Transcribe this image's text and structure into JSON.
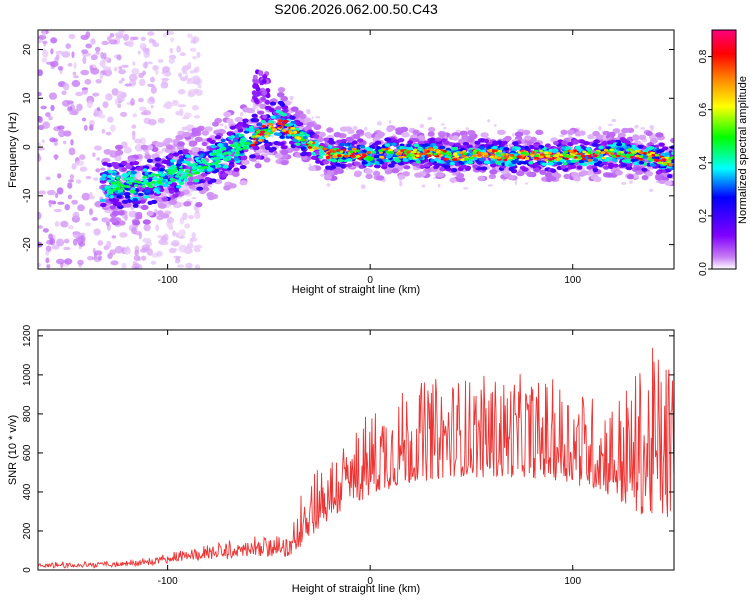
{
  "page_title": "S206.2026.062.00.50.C43",
  "chart_data": [
    {
      "type": "heatmap",
      "name": "spectrogram",
      "xlabel": "Height of straight line (km)",
      "ylabel": "Frequency (Hz)",
      "xlim": [
        -164,
        150
      ],
      "ylim": [
        -25,
        24
      ],
      "x_ticks": [
        -100,
        0,
        100
      ],
      "x_tick_labels": [
        "-100",
        "0",
        "100"
      ],
      "y_ticks": [
        -20,
        -10,
        0,
        10,
        20
      ],
      "y_tick_labels": [
        "-20",
        "-10",
        "0",
        "10",
        "20"
      ],
      "ridge": {
        "x": [
          -160,
          -140,
          -125,
          -115,
          -100,
          -85,
          -70,
          -60,
          -50,
          -45,
          -40,
          -35,
          -30,
          -20,
          -10,
          0,
          10,
          20,
          30,
          40,
          50,
          60,
          70,
          80,
          90,
          100,
          110,
          120,
          130,
          140,
          148
        ],
        "y": [
          -10,
          -9,
          -7.5,
          -8,
          -6,
          -4,
          -1,
          1,
          3.5,
          5,
          4,
          2,
          0.5,
          -1.5,
          -1,
          -2,
          -1,
          -1.5,
          -1,
          -2,
          -1.5,
          -1.5,
          -2,
          -1.5,
          -2,
          -1.5,
          -2,
          -1,
          -1.5,
          -2,
          -3
        ]
      },
      "colorbar": {
        "label": "Normalized spectral amplitude",
        "range": [
          0,
          0.9
        ],
        "ticks": [
          0.0,
          0.2,
          0.4,
          0.6,
          0.8
        ],
        "tick_labels": [
          "0.0",
          "0.2",
          "0.4",
          "0.6",
          "0.8"
        ],
        "colors": [
          "#ffffff",
          "#c87cf4",
          "#8000ff",
          "#0000ff",
          "#00ffff",
          "#00ff00",
          "#ffff00",
          "#ff8000",
          "#ff0000",
          "#ff0080"
        ]
      }
    },
    {
      "type": "line",
      "name": "snr",
      "xlabel": "Height of straight line (km)",
      "ylabel": "SNR (10 * v/v)",
      "xlim": [
        -164,
        150
      ],
      "ylim": [
        0,
        1230
      ],
      "x_ticks": [
        -100,
        0,
        100
      ],
      "x_tick_labels": [
        "-100",
        "0",
        "100"
      ],
      "y_ticks": [
        0,
        200,
        400,
        600,
        800,
        1000,
        1200
      ],
      "y_tick_labels": [
        "0",
        "200",
        "400",
        "600",
        "800",
        "1000",
        "1200"
      ],
      "line_color": "#ee3333",
      "envelope": {
        "x": [
          -164,
          -140,
          -120,
          -100,
          -80,
          -60,
          -45,
          -40,
          -35,
          -30,
          -20,
          -10,
          0,
          10,
          20,
          30,
          50,
          70,
          90,
          100,
          110,
          120,
          130,
          140,
          150
        ],
        "base": [
          20,
          20,
          25,
          40,
          60,
          70,
          80,
          70,
          120,
          180,
          260,
          320,
          380,
          420,
          450,
          470,
          480,
          480,
          460,
          450,
          420,
          380,
          300,
          280,
          260
        ],
        "peak": [
          35,
          35,
          45,
          80,
          130,
          160,
          170,
          140,
          380,
          550,
          580,
          700,
          820,
          900,
          960,
          980,
          1000,
          1000,
          980,
          960,
          900,
          880,
          1000,
          1150,
          1100
        ]
      }
    }
  ]
}
